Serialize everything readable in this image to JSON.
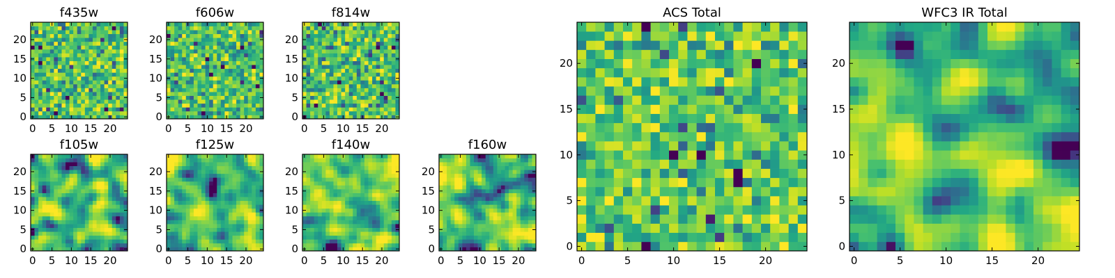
{
  "chart_data": [
    {
      "type": "heatmap",
      "title": "f435w",
      "xticks": [
        0,
        5,
        10,
        15,
        20
      ],
      "yticks": [
        0,
        5,
        10,
        15,
        20
      ],
      "xlim": [
        -0.5,
        24.5
      ],
      "ylim": [
        -0.5,
        24.5
      ],
      "grid": [
        25,
        25
      ],
      "colormap": "viridis",
      "pattern": "white noise",
      "seed": 11
    },
    {
      "type": "heatmap",
      "title": "f606w",
      "xticks": [
        0,
        5,
        10,
        15,
        20
      ],
      "yticks": [
        0,
        5,
        10,
        15,
        20
      ],
      "xlim": [
        -0.5,
        24.5
      ],
      "ylim": [
        -0.5,
        24.5
      ],
      "grid": [
        25,
        25
      ],
      "colormap": "viridis",
      "pattern": "white noise",
      "seed": 23
    },
    {
      "type": "heatmap",
      "title": "f814w",
      "xticks": [
        0,
        5,
        10,
        15,
        20
      ],
      "yticks": [
        0,
        5,
        10,
        15,
        20
      ],
      "xlim": [
        -0.5,
        24.5
      ],
      "ylim": [
        -0.5,
        24.5
      ],
      "grid": [
        25,
        25
      ],
      "colormap": "viridis",
      "pattern": "white noise",
      "seed": 37
    },
    {
      "type": "heatmap",
      "title": "f105w",
      "xticks": [
        0,
        5,
        10,
        15,
        20
      ],
      "yticks": [
        0,
        5,
        10,
        15,
        20
      ],
      "xlim": [
        -0.5,
        24.5
      ],
      "ylim": [
        -0.5,
        24.5
      ],
      "grid": [
        25,
        25
      ],
      "colormap": "viridis",
      "pattern": "smooth noise",
      "seed": 41
    },
    {
      "type": "heatmap",
      "title": "f125w",
      "xticks": [
        0,
        5,
        10,
        15,
        20
      ],
      "yticks": [
        0,
        5,
        10,
        15,
        20
      ],
      "xlim": [
        -0.5,
        24.5
      ],
      "ylim": [
        -0.5,
        24.5
      ],
      "grid": [
        25,
        25
      ],
      "colormap": "viridis",
      "pattern": "smooth noise",
      "seed": 53
    },
    {
      "type": "heatmap",
      "title": "f140w",
      "xticks": [
        0,
        5,
        10,
        15,
        20
      ],
      "yticks": [
        0,
        5,
        10,
        15,
        20
      ],
      "xlim": [
        -0.5,
        24.5
      ],
      "ylim": [
        -0.5,
        24.5
      ],
      "grid": [
        25,
        25
      ],
      "colormap": "viridis",
      "pattern": "smooth noise",
      "seed": 67
    },
    {
      "type": "heatmap",
      "title": "f160w",
      "xticks": [
        0,
        5,
        10,
        15,
        20
      ],
      "yticks": [
        0,
        5,
        10,
        15,
        20
      ],
      "xlim": [
        -0.5,
        24.5
      ],
      "ylim": [
        -0.5,
        24.5
      ],
      "grid": [
        25,
        25
      ],
      "colormap": "viridis",
      "pattern": "smooth noise",
      "seed": 79
    },
    {
      "type": "heatmap",
      "title": "ACS Total",
      "xticks": [
        0,
        5,
        10,
        15,
        20
      ],
      "yticks": [
        0,
        5,
        10,
        15,
        20
      ],
      "xlim": [
        -0.5,
        24.5
      ],
      "ylim": [
        -0.5,
        24.5
      ],
      "grid": [
        25,
        25
      ],
      "colormap": "viridis",
      "pattern": "white noise",
      "seed": 83
    },
    {
      "type": "heatmap",
      "title": "WFC3 IR Total",
      "xticks": [
        0,
        5,
        10,
        15,
        20
      ],
      "yticks": [
        0,
        5,
        10,
        15,
        20
      ],
      "xlim": [
        -0.5,
        24.5
      ],
      "ylim": [
        -0.5,
        24.5
      ],
      "grid": [
        25,
        25
      ],
      "colormap": "viridis",
      "pattern": "smooth noise",
      "seed": 97
    }
  ]
}
